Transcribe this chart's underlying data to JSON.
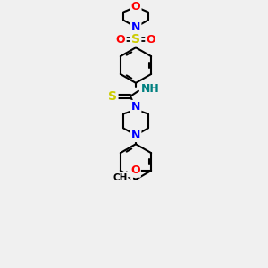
{
  "bg_color": "#f0f0f0",
  "bond_color": "#000000",
  "atom_colors": {
    "O": "#ff0000",
    "N": "#0000ff",
    "S": "#cccc00",
    "C": "#000000",
    "H": "#008080"
  },
  "figsize": [
    3.0,
    3.0
  ],
  "dpi": 100
}
